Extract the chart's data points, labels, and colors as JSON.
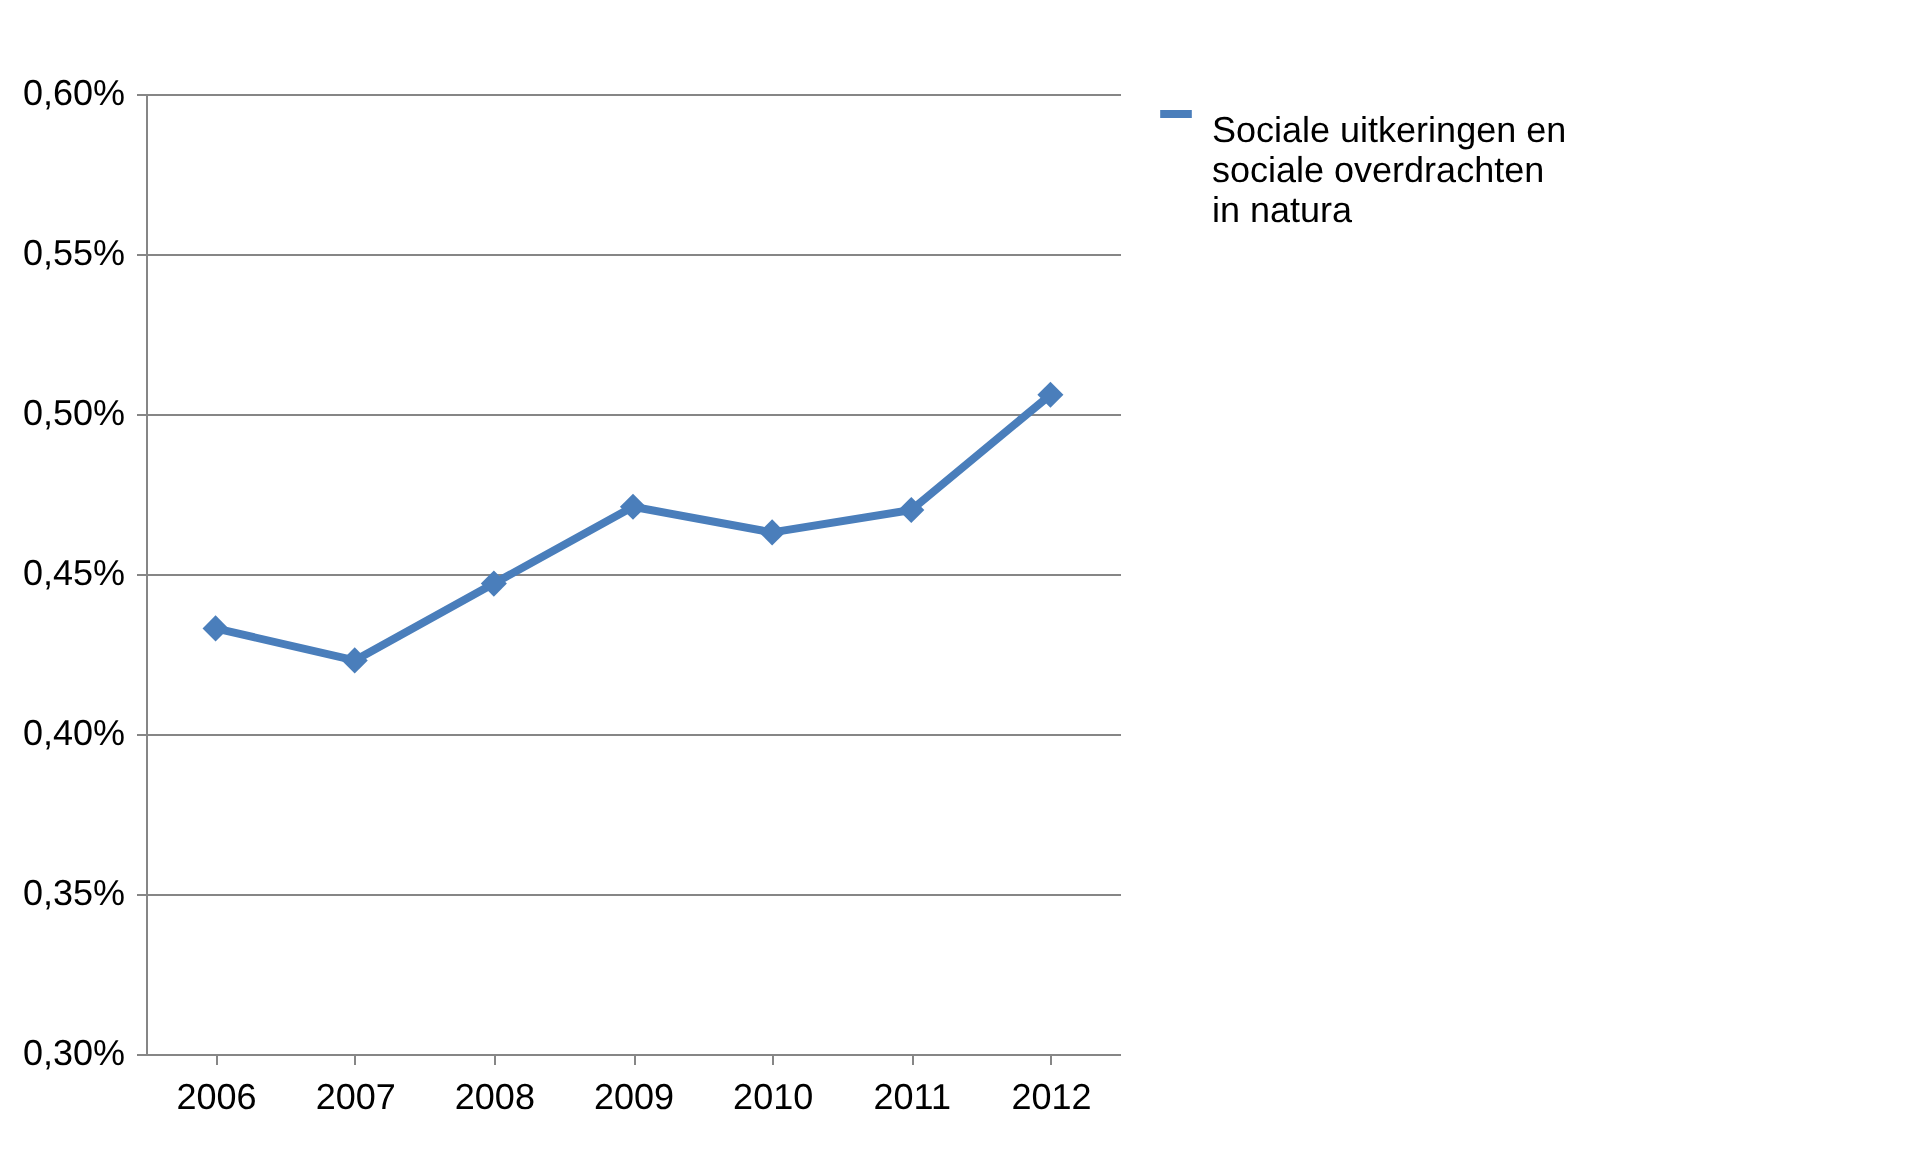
{
  "chart_data": {
    "type": "line",
    "categories": [
      "2006",
      "2007",
      "2008",
      "2009",
      "2010",
      "2011",
      "2012"
    ],
    "series": [
      {
        "name": "Sociale uitkeringen en sociale overdrachten in natura",
        "color": "#4a7ebb",
        "values": [
          0.433,
          0.423,
          0.447,
          0.471,
          0.463,
          0.47,
          0.506
        ]
      }
    ],
    "ylim": [
      0.3,
      0.6
    ],
    "yticks": [
      {
        "value": 0.3,
        "label": "0,30%"
      },
      {
        "value": 0.35,
        "label": "0,35%"
      },
      {
        "value": 0.4,
        "label": "0,40%"
      },
      {
        "value": 0.45,
        "label": "0,45%"
      },
      {
        "value": 0.5,
        "label": "0,50%"
      },
      {
        "value": 0.55,
        "label": "0,55%"
      },
      {
        "value": 0.6,
        "label": "0,60%"
      }
    ],
    "grid": "y",
    "legend": "right",
    "marker": "diamond",
    "line_style": "solid"
  }
}
